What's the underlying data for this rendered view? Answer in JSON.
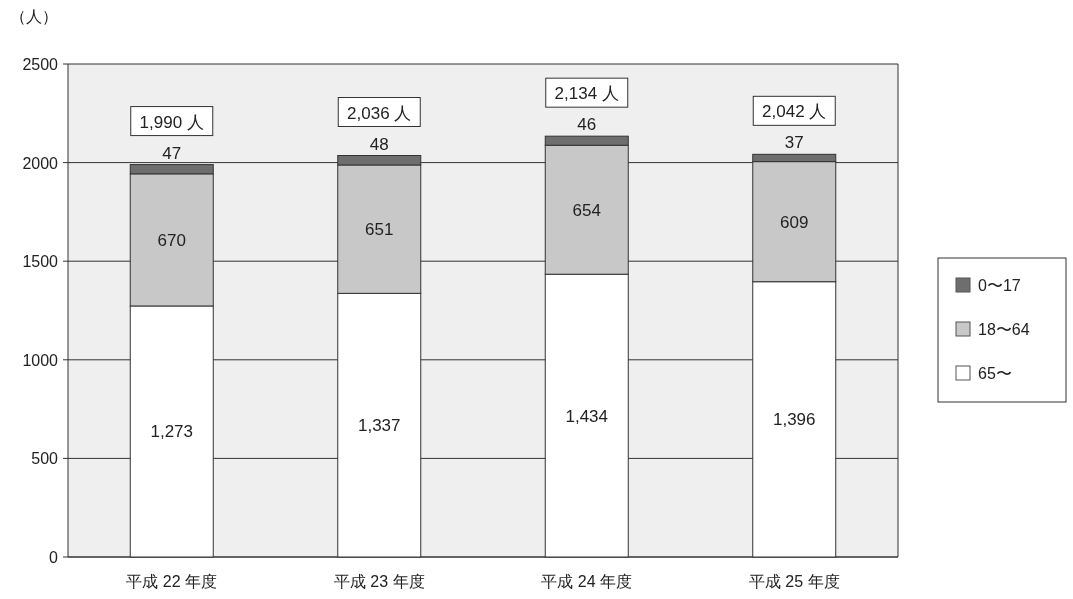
{
  "chart_data": {
    "type": "bar",
    "ylabel": "（人）",
    "categories": [
      "平成 22 年度",
      "平成 23 年度",
      "平成 24 年度",
      "平成 25 年度"
    ],
    "stacked": true,
    "ylim": [
      0,
      2500
    ],
    "yticks": [
      0,
      500,
      1000,
      1500,
      2000,
      2500
    ],
    "grid": "y",
    "legend": "right",
    "series": [
      {
        "name": "65〜",
        "color": "#ffffff",
        "values": [
          1273,
          1337,
          1434,
          1396
        ],
        "value_labels": [
          "1,273",
          "1,337",
          "1,434",
          "1,396"
        ]
      },
      {
        "name": "18〜64",
        "color": "#c8c8c8",
        "values": [
          670,
          651,
          654,
          609
        ],
        "value_labels": [
          "670",
          "651",
          "654",
          "609"
        ]
      },
      {
        "name": "0〜17",
        "color": "#6e6e6e",
        "values": [
          47,
          48,
          46,
          37
        ],
        "value_labels": [
          "47",
          "48",
          "46",
          "37"
        ]
      }
    ],
    "totals": [
      "1,990 人",
      "2,036 人",
      "2,134 人",
      "2,042 人"
    ]
  }
}
